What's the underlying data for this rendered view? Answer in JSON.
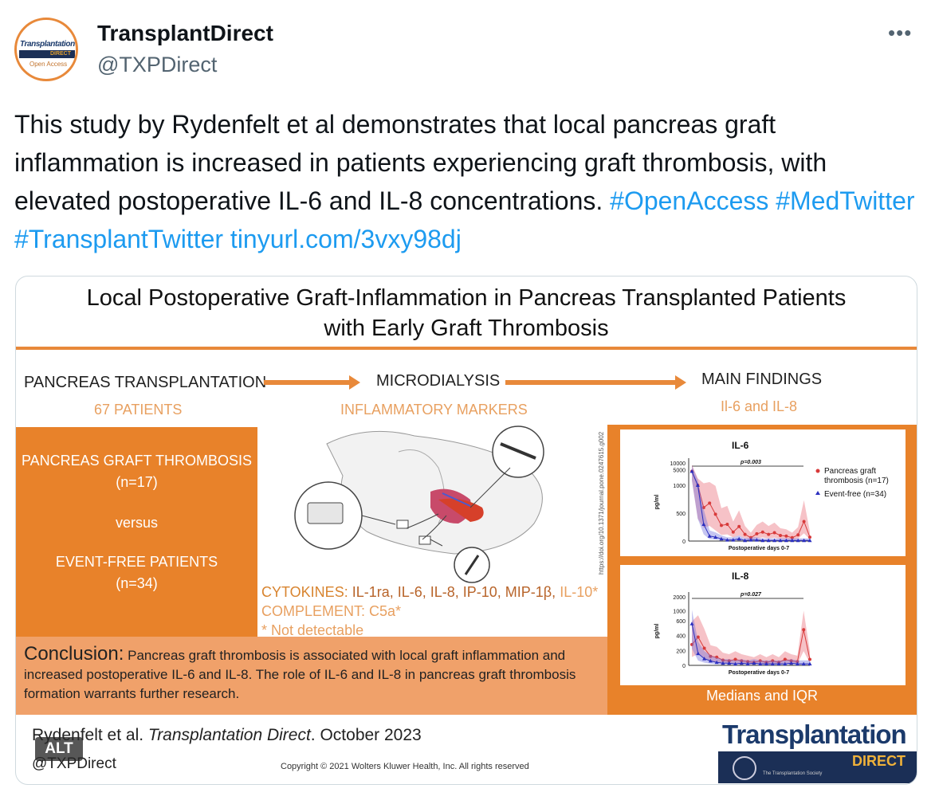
{
  "tweet": {
    "avatar": {
      "logo_top": "Transplantation",
      "logo_bar": "DIRECT",
      "logo_sub": "Open Access"
    },
    "display_name": "TransplantDirect",
    "handle": "@TXPDirect",
    "more_label": "•••",
    "text": "This study by Rydenfelt et al demonstrates that local pancreas graft inflammation is increased in patients experiencing graft thrombosis, with elevated postoperative IL-6 and IL-8 concentrations. ",
    "links": [
      "#OpenAccess",
      "#MedTwitter",
      "#TransplantTwitter",
      "tinyurl.com/3vxy98dj"
    ]
  },
  "infographic": {
    "title_line1": "Local Postoperative Graft-Inflammation in Pancreas Transplanted Patients",
    "title_line2": "with Early Graft Thrombosis",
    "columns": [
      {
        "heading": "PANCREAS TRANSPLANTATION",
        "sub": "67 PATIENTS"
      },
      {
        "heading": "MICRODIALYSIS",
        "sub": "INFLAMMATORY MARKERS"
      },
      {
        "heading": "MAIN FINDINGS",
        "sub": "Il-6 and IL-8"
      }
    ],
    "left_box": {
      "line1": "PANCREAS GRAFT THROMBOSIS",
      "line2": "(n=17)",
      "versus": "versus",
      "line3": "EVENT-FREE PATIENTS",
      "line4": "(n=34)"
    },
    "doi": "https://doi.org/10.1371/journal.pone.0247615.g002",
    "cytokines_label": "CYTOKINES:",
    "cytokines": "IL-1ra, IL-6, IL-8, IP-10, MIP-1β,",
    "cytokines_nd": "IL-10*",
    "complement": "COMPLEMENT: C5a*",
    "not_detectable": "* Not detectable",
    "conclusion_label": "Conclusion:",
    "conclusion_text": "Pancreas graft thrombosis is associated with local graft inflammation and increased postoperative IL-6 and IL-8. The role of IL-6 and IL-8 in pancreas graft thrombosis formation warrants further research.",
    "medians": "Medians and IQR",
    "citation_authors": "Rydenfelt et al. ",
    "citation_journal": "Transplantation Direct",
    "citation_date": ". October 2023",
    "handle": "@TXPDirect",
    "copyright": "Copyright © 2021 Wolters Kluwer Health, Inc. All rights reserved",
    "brand_top": "Transplantation",
    "brand_bottom": "DIRECT",
    "brand_society": "The Transplantation Society",
    "alt_label": "ALT"
  },
  "colors": {
    "accent_orange": "#e8822a",
    "link_blue": "#1d9bf0",
    "event_free_blue": "#2b2fbf",
    "thrombosis_red": "#d83a3a"
  },
  "chart_data": [
    {
      "type": "line",
      "title": "IL-6",
      "annotation": "p=0.003",
      "xlabel": "Postoperative days 0-7",
      "ylabel": "pg/ml",
      "y_ticks": [
        "0",
        "500",
        "1000",
        "5000",
        "10000"
      ],
      "series": [
        {
          "name": "Pancreas graft thrombosis (n=17)",
          "values": [
            4200,
            1000,
            600,
            680,
            480,
            280,
            300,
            160,
            260,
            120,
            60,
            130,
            160,
            120,
            150,
            100,
            90,
            60,
            110,
            350,
            70
          ]
        },
        {
          "name": "Event-free (n=34)",
          "values": [
            4200,
            1000,
            300,
            90,
            70,
            40,
            20,
            20,
            40,
            10,
            20,
            20,
            10,
            10,
            10,
            10,
            10,
            10,
            10,
            10,
            10
          ]
        }
      ]
    },
    {
      "type": "line",
      "title": "IL-8",
      "annotation": "p=0.027",
      "xlabel": "Postoperative days 0-7",
      "ylabel": "pg/ml",
      "y_ticks": [
        "0",
        "200",
        "400",
        "600",
        "1000",
        "2000"
      ],
      "series": [
        {
          "name": "Pancreas graft thrombosis",
          "values": [
            280,
            380,
            230,
            120,
            110,
            70,
            60,
            80,
            60,
            50,
            40,
            60,
            40,
            60,
            40,
            80,
            60,
            50,
            480,
            80
          ]
        },
        {
          "name": "Event-free",
          "values": [
            560,
            160,
            90,
            60,
            40,
            30,
            30,
            20,
            30,
            20,
            30,
            20,
            20,
            20,
            20,
            20,
            30,
            20,
            20,
            20
          ]
        }
      ]
    }
  ]
}
